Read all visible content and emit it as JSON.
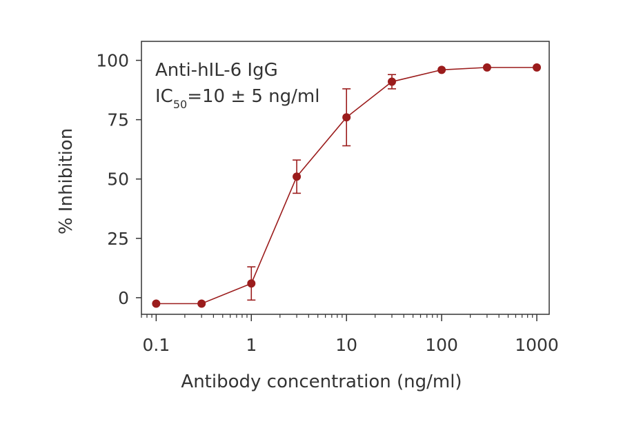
{
  "chart_data": {
    "type": "line",
    "title": "",
    "xlabel": "Antibody concentration (ng/ml)",
    "ylabel": "% Inhibition",
    "xscale": "log",
    "xlim": [
      0.07,
      1350
    ],
    "ylim": [
      -7,
      108
    ],
    "xticks": [
      {
        "value": 0.1,
        "label": "0.1"
      },
      {
        "value": 1,
        "label": "1"
      },
      {
        "value": 10,
        "label": "10"
      },
      {
        "value": 100,
        "label": "100"
      },
      {
        "value": 1000,
        "label": "1000"
      }
    ],
    "yticks": [
      {
        "value": 0,
        "label": "0"
      },
      {
        "value": 25,
        "label": "25"
      },
      {
        "value": 50,
        "label": "50"
      },
      {
        "value": 75,
        "label": "75"
      },
      {
        "value": 100,
        "label": "100"
      }
    ],
    "annotation": {
      "line1": "Anti-hIL-6 IgG",
      "line2_main": "IC",
      "line2_sub": "50",
      "line2_rest": "=10 ± 5 ng/ml"
    },
    "grid": false,
    "legend": "none",
    "color": "#9b1c1c",
    "series": [
      {
        "x": [
          0.1,
          0.3,
          1,
          3,
          10,
          30,
          100,
          300,
          1000
        ],
        "y": [
          -2.5,
          -2.5,
          6,
          51,
          76,
          91,
          96,
          97,
          97
        ],
        "error": [
          0,
          0,
          7,
          7,
          12,
          3,
          0,
          0,
          0
        ]
      }
    ]
  }
}
